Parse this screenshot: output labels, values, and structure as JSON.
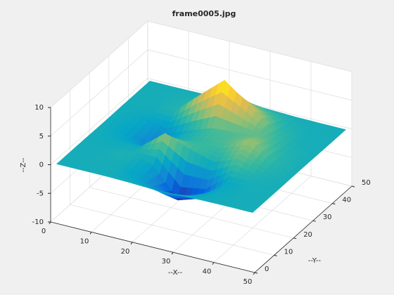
{
  "chart_data": {
    "type": "surface",
    "title": "frame0005.jpg",
    "xlabel": "--X--",
    "ylabel": "--Y--",
    "zlabel": "--Z--",
    "x": [
      1,
      7,
      13,
      19,
      25,
      31,
      37,
      43,
      49
    ],
    "y": [
      1,
      7,
      13,
      19,
      25,
      31,
      37,
      43,
      49
    ],
    "z": [
      [
        0,
        0.01,
        0.01,
        -0.08,
        -0.25,
        -0.17,
        -0.03,
        0,
        0
      ],
      [
        0,
        0.01,
        0.01,
        -0.99,
        -3.02,
        -2.05,
        -0.35,
        -0.01,
        0
      ],
      [
        0,
        0.02,
        0.33,
        -0.68,
        -5.68,
        -4.32,
        -0.44,
        0.05,
        0
      ],
      [
        -0.02,
        -0.25,
        -0.28,
        3.09,
        1.4,
        0.2,
        1.78,
        0.41,
        0.02
      ],
      [
        -0.04,
        -0.69,
        -2.77,
        0.06,
        0.98,
        1.57,
        3.27,
        0.7,
        0.03
      ],
      [
        -0.02,
        -0.42,
        -1.76,
        -0.05,
        1.42,
        1.65,
        1.99,
        0.4,
        0.02
      ],
      [
        0,
        -0.03,
        0.48,
        4.37,
        8.0,
        4.72,
        1.19,
        0.12,
        0
      ],
      [
        0,
        0.02,
        0.36,
        2.07,
        3.65,
        2.09,
        0.41,
        0.03,
        0
      ],
      [
        0,
        0,
        0.03,
        0.17,
        0.3,
        0.17,
        0.03,
        0,
        0
      ]
    ],
    "xlim": [
      0,
      50
    ],
    "ylim": [
      0,
      50
    ],
    "zlim": [
      -10,
      10
    ],
    "xticks": [
      0,
      10,
      20,
      30,
      40,
      50
    ],
    "yticks": [
      0,
      10,
      20,
      30,
      40,
      50
    ],
    "zticks": [
      -10,
      -5,
      0,
      5,
      10
    ],
    "grid": true,
    "colormap": [
      "#352a87",
      "#0363e1",
      "#1485d4",
      "#06a7c6",
      "#38b99e",
      "#92bf73",
      "#d9ba56",
      "#fcce2e",
      "#f9fb0e"
    ]
  }
}
